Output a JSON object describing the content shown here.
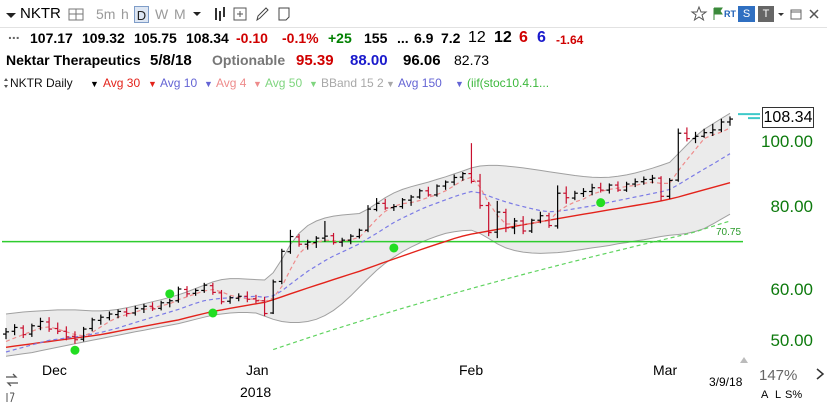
{
  "toolbar": {
    "symbol": "NKTR",
    "interval_5m": "5m",
    "interval_h": "h",
    "interval_d": "D",
    "interval_w": "W",
    "interval_m": "M",
    "rt_badge": "RT",
    "s_badge": "S",
    "t_badge": "T"
  },
  "quote": {
    "dots": "...",
    "open": "107.17",
    "high": "109.32",
    "low": "105.75",
    "close": "108.34",
    "change": "-0.10",
    "change_pct": "-0.1%",
    "plus": "+25",
    "val1": "155",
    "ellipsis": "...",
    "val2": "6.9",
    "val3": "7.2",
    "val4": "12",
    "val5": "12",
    "val6": "6",
    "val7": "6",
    "val8": "-1.64"
  },
  "info": {
    "company": "Nektar Therapeutics",
    "date": "5/8/18",
    "optionable": "Optionable",
    "v1": "95.39",
    "v2": "88.00",
    "v3": "96.06",
    "v4": "82.73"
  },
  "legend": {
    "symbol_interval": "NKTR Daily",
    "avg30": "Avg 30",
    "avg10": "Avg 10",
    "avg4": "Avg 4",
    "avg50": "Avg 50",
    "bband": "BBand 15 2",
    "avg150": "Avg 150",
    "iif": "(iif(stoc10.4.1..."
  },
  "colors": {
    "up": "#000000",
    "down": "#c8102e",
    "avg30": "#e3231b",
    "avg10": "#7b7be6",
    "avg4": "#ee8b8b",
    "avg50": "#5fd35f",
    "bband_fill": "#ebebeb",
    "bband_line": "#a0a0a0",
    "hline": "#2ecc2e",
    "signal": "#22dd22",
    "axis_text": "#0d7a0d"
  },
  "chart_data": {
    "type": "line",
    "price_axis_labels": [
      "100.00",
      "80.00",
      "60.00",
      "50.00"
    ],
    "x_tick_labels": [
      "Dec",
      "Jan",
      "Feb",
      "Mar"
    ],
    "year_label": "2018",
    "last_price_label": "108.34",
    "horizontal_line_label": "70.75",
    "horizontal_line_value": 70.75,
    "date_label": "3/9/18",
    "zoom": "147%",
    "corner_labels": [
      "A",
      "L",
      "S%"
    ],
    "scale": "log",
    "ylim": [
      47,
      116
    ],
    "bars": [
      {
        "o": 51.3,
        "h": 52.4,
        "l": 50.4,
        "c": 51.7
      },
      {
        "o": 51.8,
        "h": 53.1,
        "l": 51.1,
        "c": 52.5
      },
      {
        "o": 52.4,
        "h": 52.9,
        "l": 50.6,
        "c": 51.2
      },
      {
        "o": 51.3,
        "h": 53.2,
        "l": 50.8,
        "c": 52.8
      },
      {
        "o": 52.7,
        "h": 54.3,
        "l": 52.0,
        "c": 53.6
      },
      {
        "o": 53.5,
        "h": 54.4,
        "l": 51.7,
        "c": 52.2
      },
      {
        "o": 52.3,
        "h": 53.4,
        "l": 51.3,
        "c": 51.8
      },
      {
        "o": 51.8,
        "h": 52.7,
        "l": 50.2,
        "c": 50.8
      },
      {
        "o": 50.9,
        "h": 51.8,
        "l": 49.6,
        "c": 50.3
      },
      {
        "o": 50.4,
        "h": 52.6,
        "l": 50.0,
        "c": 52.2
      },
      {
        "o": 52.3,
        "h": 54.3,
        "l": 51.8,
        "c": 53.9
      },
      {
        "o": 53.8,
        "h": 54.9,
        "l": 53.0,
        "c": 54.4
      },
      {
        "o": 54.3,
        "h": 55.5,
        "l": 53.8,
        "c": 55.0
      },
      {
        "o": 54.9,
        "h": 55.9,
        "l": 54.2,
        "c": 55.5
      },
      {
        "o": 55.4,
        "h": 56.2,
        "l": 54.5,
        "c": 55.1
      },
      {
        "o": 55.2,
        "h": 56.6,
        "l": 54.7,
        "c": 56.1
      },
      {
        "o": 56.0,
        "h": 57.0,
        "l": 55.2,
        "c": 56.5
      },
      {
        "o": 56.5,
        "h": 57.3,
        "l": 55.6,
        "c": 56.0
      },
      {
        "o": 56.1,
        "h": 57.6,
        "l": 55.7,
        "c": 57.2
      },
      {
        "o": 57.2,
        "h": 58.0,
        "l": 56.3,
        "c": 57.6
      },
      {
        "o": 57.6,
        "h": 60.5,
        "l": 57.2,
        "c": 60.0
      },
      {
        "o": 59.9,
        "h": 60.6,
        "l": 58.4,
        "c": 59.0
      },
      {
        "o": 59.1,
        "h": 60.1,
        "l": 58.6,
        "c": 59.7
      },
      {
        "o": 59.7,
        "h": 61.3,
        "l": 59.2,
        "c": 60.8
      },
      {
        "o": 60.7,
        "h": 61.3,
        "l": 58.8,
        "c": 59.3
      },
      {
        "o": 59.2,
        "h": 59.8,
        "l": 56.9,
        "c": 57.4
      },
      {
        "o": 57.5,
        "h": 58.6,
        "l": 57.0,
        "c": 58.2
      },
      {
        "o": 58.1,
        "h": 59.1,
        "l": 57.5,
        "c": 58.5
      },
      {
        "o": 58.5,
        "h": 59.5,
        "l": 57.3,
        "c": 57.9
      },
      {
        "o": 58.0,
        "h": 58.8,
        "l": 57.1,
        "c": 57.6
      },
      {
        "o": 57.6,
        "h": 58.4,
        "l": 54.6,
        "c": 55.1
      },
      {
        "o": 55.2,
        "h": 62.0,
        "l": 55.0,
        "c": 61.5
      },
      {
        "o": 61.6,
        "h": 69.0,
        "l": 61.0,
        "c": 68.4
      },
      {
        "o": 68.3,
        "h": 73.7,
        "l": 67.8,
        "c": 72.0
      },
      {
        "o": 71.9,
        "h": 72.6,
        "l": 69.5,
        "c": 70.1
      },
      {
        "o": 70.1,
        "h": 71.2,
        "l": 68.8,
        "c": 70.6
      },
      {
        "o": 70.5,
        "h": 72.1,
        "l": 69.2,
        "c": 71.6
      },
      {
        "o": 71.6,
        "h": 76.0,
        "l": 70.7,
        "c": 72.1
      },
      {
        "o": 72.2,
        "h": 72.9,
        "l": 70.0,
        "c": 70.5
      },
      {
        "o": 70.6,
        "h": 71.7,
        "l": 69.5,
        "c": 71.1
      },
      {
        "o": 71.1,
        "h": 72.6,
        "l": 70.1,
        "c": 72.1
      },
      {
        "o": 72.0,
        "h": 74.0,
        "l": 71.5,
        "c": 73.6
      },
      {
        "o": 73.6,
        "h": 80.3,
        "l": 73.1,
        "c": 79.2
      },
      {
        "o": 79.1,
        "h": 82.3,
        "l": 78.6,
        "c": 80.8
      },
      {
        "o": 80.8,
        "h": 82.1,
        "l": 79.0,
        "c": 79.5
      },
      {
        "o": 79.6,
        "h": 80.6,
        "l": 78.7,
        "c": 79.9
      },
      {
        "o": 79.9,
        "h": 82.3,
        "l": 79.3,
        "c": 81.8
      },
      {
        "o": 81.7,
        "h": 83.2,
        "l": 80.1,
        "c": 82.6
      },
      {
        "o": 82.6,
        "h": 85.0,
        "l": 82.1,
        "c": 84.4
      },
      {
        "o": 84.4,
        "h": 85.6,
        "l": 82.7,
        "c": 83.2
      },
      {
        "o": 83.2,
        "h": 86.3,
        "l": 82.7,
        "c": 85.8
      },
      {
        "o": 85.8,
        "h": 87.5,
        "l": 84.7,
        "c": 87.0
      },
      {
        "o": 87.0,
        "h": 89.3,
        "l": 86.0,
        "c": 88.4
      },
      {
        "o": 88.5,
        "h": 90.1,
        "l": 87.4,
        "c": 89.6
      },
      {
        "o": 89.6,
        "h": 99.6,
        "l": 86.6,
        "c": 87.2
      },
      {
        "o": 87.3,
        "h": 89.5,
        "l": 79.3,
        "c": 80.2
      },
      {
        "o": 80.2,
        "h": 81.2,
        "l": 72.1,
        "c": 73.0
      },
      {
        "o": 73.1,
        "h": 81.5,
        "l": 71.6,
        "c": 78.4
      },
      {
        "o": 78.3,
        "h": 79.3,
        "l": 73.1,
        "c": 74.2
      },
      {
        "o": 74.2,
        "h": 76.8,
        "l": 72.6,
        "c": 76.0
      },
      {
        "o": 76.0,
        "h": 77.3,
        "l": 72.6,
        "c": 73.4
      },
      {
        "o": 73.4,
        "h": 76.6,
        "l": 72.9,
        "c": 76.2
      },
      {
        "o": 76.2,
        "h": 78.5,
        "l": 75.4,
        "c": 77.4
      },
      {
        "o": 77.4,
        "h": 78.2,
        "l": 74.2,
        "c": 74.8
      },
      {
        "o": 74.7,
        "h": 86.0,
        "l": 74.0,
        "c": 83.7
      },
      {
        "o": 83.7,
        "h": 85.7,
        "l": 80.7,
        "c": 82.4
      },
      {
        "o": 82.3,
        "h": 84.4,
        "l": 81.7,
        "c": 83.7
      },
      {
        "o": 83.6,
        "h": 85.2,
        "l": 82.6,
        "c": 84.2
      },
      {
        "o": 84.2,
        "h": 86.5,
        "l": 83.1,
        "c": 85.3
      },
      {
        "o": 85.3,
        "h": 86.8,
        "l": 83.9,
        "c": 84.6
      },
      {
        "o": 84.6,
        "h": 86.6,
        "l": 83.6,
        "c": 86.1
      },
      {
        "o": 86.1,
        "h": 87.2,
        "l": 84.1,
        "c": 84.6
      },
      {
        "o": 84.6,
        "h": 87.1,
        "l": 84.1,
        "c": 86.4
      },
      {
        "o": 86.4,
        "h": 88.1,
        "l": 85.5,
        "c": 87.1
      },
      {
        "o": 87.1,
        "h": 88.7,
        "l": 86.2,
        "c": 87.8
      },
      {
        "o": 87.8,
        "h": 89.2,
        "l": 86.6,
        "c": 88.2
      },
      {
        "o": 88.2,
        "h": 88.8,
        "l": 81.5,
        "c": 82.8
      },
      {
        "o": 82.8,
        "h": 88.2,
        "l": 82.1,
        "c": 87.5
      },
      {
        "o": 87.6,
        "h": 104.8,
        "l": 87.1,
        "c": 103.1
      },
      {
        "o": 103.1,
        "h": 105.2,
        "l": 100.2,
        "c": 101.2
      },
      {
        "o": 101.2,
        "h": 103.6,
        "l": 99.6,
        "c": 102.0
      },
      {
        "o": 102.0,
        "h": 104.7,
        "l": 101.5,
        "c": 103.3
      },
      {
        "o": 103.3,
        "h": 106.5,
        "l": 102.1,
        "c": 104.3
      },
      {
        "o": 104.3,
        "h": 108.4,
        "l": 103.5,
        "c": 107.2
      },
      {
        "o": 107.2,
        "h": 109.3,
        "l": 105.8,
        "c": 108.3
      }
    ],
    "series": [
      {
        "name": "Avg 30",
        "values": [
          49.0,
          49.2,
          49.4,
          49.6,
          49.8,
          50.0,
          50.2,
          50.4,
          50.6,
          50.8,
          51.0,
          51.2,
          51.5,
          51.8,
          52.1,
          52.4,
          52.7,
          53.0,
          53.3,
          53.6,
          53.9,
          54.3,
          54.7,
          55.1,
          55.5,
          55.8,
          56.1,
          56.4,
          56.7,
          57.0,
          57.3,
          57.8,
          58.4,
          59.0,
          59.6,
          60.2,
          60.8,
          61.4,
          62.0,
          62.6,
          63.2,
          63.8,
          64.5,
          65.2,
          65.9,
          66.6,
          67.3,
          68.0,
          68.7,
          69.4,
          70.1,
          70.8,
          71.5,
          72.1,
          72.6,
          73.0,
          73.4,
          73.8,
          74.2,
          74.6,
          75.0,
          75.4,
          75.8,
          76.2,
          76.6,
          77.0,
          77.4,
          77.8,
          78.2,
          78.6,
          79.0,
          79.4,
          79.8,
          80.2,
          80.6,
          81.0,
          81.5,
          82.0,
          82.6,
          83.3,
          84.0,
          84.7,
          85.4,
          86.1,
          86.8
        ]
      },
      {
        "name": "Avg 10",
        "values": [
          48.2,
          48.6,
          49.0,
          49.4,
          49.8,
          50.2,
          50.4,
          50.6,
          50.8,
          51.0,
          51.3,
          51.6,
          52.0,
          52.4,
          52.9,
          53.4,
          53.9,
          54.4,
          54.9,
          55.4,
          55.9,
          56.5,
          57.1,
          57.6,
          57.9,
          58.1,
          58.2,
          58.3,
          58.4,
          58.5,
          58.3,
          58.6,
          59.6,
          61.0,
          62.4,
          63.8,
          65.0,
          66.2,
          67.3,
          68.2,
          69.2,
          70.2,
          71.5,
          72.8,
          74.2,
          75.6,
          76.8,
          77.9,
          79.0,
          80.0,
          80.9,
          81.8,
          82.7,
          83.5,
          84.2,
          83.8,
          82.9,
          82.0,
          81.2,
          80.5,
          79.9,
          79.3,
          78.8,
          78.5,
          78.6,
          78.9,
          79.3,
          79.7,
          80.1,
          80.6,
          81.1,
          81.6,
          82.1,
          82.6,
          83.1,
          83.6,
          84.1,
          84.8,
          86.2,
          87.8,
          89.4,
          91.0,
          92.6,
          94.3,
          96.0
        ]
      },
      {
        "name": "Avg 4",
        "values": [
          50.0,
          50.6,
          51.2,
          51.8,
          52.4,
          52.6,
          52.2,
          51.7,
          51.2,
          51.0,
          51.6,
          52.6,
          53.6,
          54.4,
          54.9,
          55.4,
          55.9,
          56.2,
          56.6,
          57.0,
          57.8,
          58.4,
          59.0,
          59.6,
          59.9,
          59.4,
          58.7,
          58.3,
          58.0,
          57.9,
          57.4,
          58.2,
          60.5,
          64.2,
          67.8,
          69.8,
          70.5,
          71.1,
          71.0,
          70.8,
          71.2,
          71.8,
          74.0,
          76.5,
          78.6,
          80.0,
          80.7,
          81.0,
          81.6,
          82.5,
          83.3,
          84.4,
          85.9,
          87.6,
          88.5,
          85.5,
          81.0,
          77.5,
          75.2,
          75.2,
          75.0,
          75.3,
          76.0,
          76.0,
          78.5,
          80.0,
          81.2,
          82.0,
          83.4,
          84.2,
          84.8,
          85.2,
          85.7,
          86.0,
          86.6,
          87.0,
          86.6,
          86.6,
          90.5,
          94.0,
          97.5,
          101.2,
          102.5,
          103.5,
          105.0
        ]
      },
      {
        "name": "Avg 50",
        "values": [
          null,
          null,
          null,
          null,
          null,
          null,
          null,
          null,
          null,
          null,
          null,
          null,
          null,
          null,
          null,
          null,
          null,
          null,
          null,
          null,
          null,
          null,
          null,
          null,
          null,
          null,
          null,
          null,
          null,
          null,
          null,
          48.6,
          49.1,
          49.6,
          50.1,
          50.6,
          51.1,
          51.6,
          52.1,
          52.6,
          53.1,
          53.6,
          54.1,
          54.6,
          55.1,
          55.6,
          56.1,
          56.6,
          57.1,
          57.6,
          58.1,
          58.6,
          59.1,
          59.6,
          60.1,
          60.6,
          61.1,
          61.6,
          62.1,
          62.6,
          63.1,
          63.6,
          64.1,
          64.6,
          65.1,
          65.6,
          66.1,
          66.6,
          67.1,
          67.6,
          68.1,
          68.6,
          69.1,
          69.6,
          70.1,
          70.6,
          71.1,
          71.6,
          72.1,
          72.6,
          73.2,
          73.9,
          74.6,
          75.3,
          76.0
        ]
      },
      {
        "name": "BBand upper",
        "values": [
          55.0,
          55.2,
          55.4,
          55.5,
          55.6,
          55.7,
          55.8,
          55.8,
          55.8,
          55.7,
          55.6,
          55.6,
          55.7,
          55.9,
          56.2,
          56.6,
          57.0,
          57.4,
          57.8,
          58.3,
          58.8,
          59.4,
          60.1,
          60.8,
          61.5,
          62.0,
          62.2,
          62.2,
          62.1,
          62.0,
          61.9,
          63.5,
          66.5,
          70.0,
          72.8,
          74.8,
          76.0,
          76.8,
          77.3,
          77.6,
          77.8,
          78.0,
          79.2,
          80.8,
          82.4,
          83.8,
          84.8,
          85.6,
          86.3,
          87.0,
          87.8,
          88.6,
          89.5,
          90.4,
          91.4,
          92.0,
          92.2,
          92.2,
          92.0,
          91.7,
          91.4,
          91.0,
          90.6,
          90.2,
          89.8,
          89.4,
          89.0,
          88.7,
          88.5,
          88.4,
          88.5,
          88.8,
          89.2,
          89.8,
          90.5,
          91.3,
          92.2,
          93.2,
          96.0,
          99.0,
          102.0,
          104.5,
          106.5,
          108.5,
          110.5
        ]
      },
      {
        "name": "BBand lower",
        "values": [
          47.5,
          47.7,
          47.9,
          48.1,
          48.4,
          48.7,
          49.0,
          49.3,
          49.6,
          49.9,
          50.2,
          50.5,
          50.8,
          51.1,
          51.4,
          51.7,
          52.0,
          52.3,
          52.6,
          52.9,
          53.2,
          53.6,
          54.0,
          54.4,
          54.8,
          55.0,
          55.2,
          55.3,
          55.3,
          55.2,
          54.6,
          54.0,
          53.6,
          53.4,
          53.4,
          53.6,
          54.0,
          54.7,
          55.7,
          57.0,
          58.6,
          60.4,
          62.2,
          64.0,
          65.6,
          67.0,
          68.3,
          69.4,
          70.4,
          71.3,
          72.1,
          72.8,
          73.2,
          73.5,
          73.6,
          72.8,
          71.5,
          70.2,
          69.2,
          68.6,
          68.2,
          68.0,
          67.9,
          68.0,
          68.1,
          68.3,
          68.6,
          68.9,
          69.2,
          69.5,
          69.8,
          70.2,
          70.5,
          70.9,
          71.2,
          71.6,
          72.0,
          72.3,
          72.5,
          72.8,
          73.3,
          74.0,
          75.2,
          76.5,
          77.8
        ]
      }
    ],
    "signal_dots": [
      {
        "bar": 8,
        "value": 48.5
      },
      {
        "bar": 19,
        "value": 59.0
      },
      {
        "bar": 24,
        "value": 55.2
      },
      {
        "bar": 45,
        "value": 69.2
      },
      {
        "bar": 69,
        "value": 81.0
      }
    ]
  }
}
